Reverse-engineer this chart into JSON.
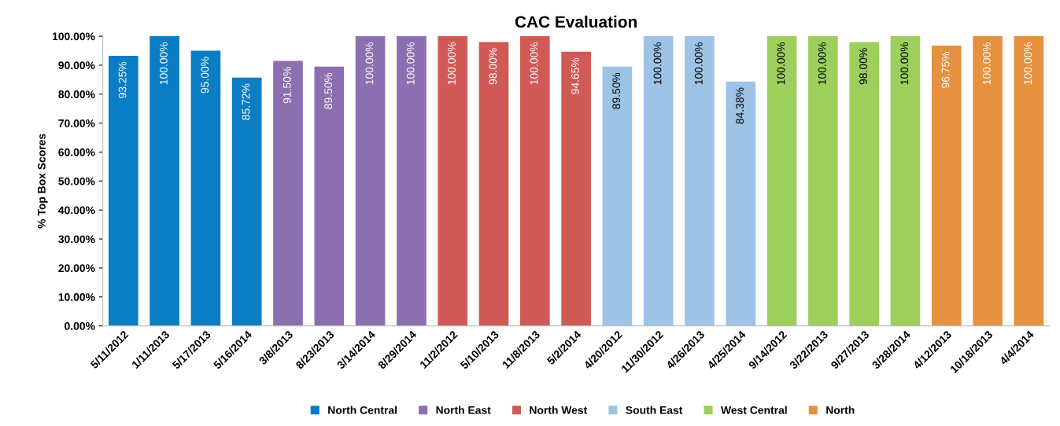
{
  "chart_data": {
    "type": "bar",
    "title": "CAC Evaluation",
    "ylabel": "% Top Box Scores",
    "categories": [
      "5/11/2012",
      "1/11/2013",
      "5/17/2013",
      "5/16/2014",
      "3/8/2013",
      "8/23/2013",
      "3/14/2014",
      "8/29/2014",
      "11/2/2012",
      "5/10/2013",
      "11/8/2013",
      "5/2/2014",
      "4/20/2012",
      "11/30/2012",
      "4/26/2013",
      "4/25/2014",
      "9/14/2012",
      "3/22/2013",
      "9/27/2013",
      "3/28/2014",
      "4/12/2013",
      "10/18/2013",
      "4/4/2014"
    ],
    "series": [
      {
        "name": "North Central",
        "color": "#0a7dc4",
        "values": [
          93.25,
          100,
          95,
          85.72,
          null,
          null,
          null,
          null,
          null,
          null,
          null,
          null,
          null,
          null,
          null,
          null,
          null,
          null,
          null,
          null,
          null,
          null,
          null
        ],
        "value_labels": [
          "93.25%",
          "100.00%",
          "95.00%",
          "85.72%",
          null,
          null,
          null,
          null,
          null,
          null,
          null,
          null,
          null,
          null,
          null,
          null,
          null,
          null,
          null,
          null,
          null,
          null,
          null
        ]
      },
      {
        "name": "North East",
        "color": "#8c6fb0",
        "values": [
          null,
          null,
          null,
          null,
          91.5,
          89.5,
          100,
          100,
          null,
          null,
          null,
          null,
          null,
          null,
          null,
          null,
          null,
          null,
          null,
          null,
          null,
          null,
          null
        ],
        "value_labels": [
          null,
          null,
          null,
          null,
          "91.50%",
          "89.50%",
          "100.00%",
          "100.00%",
          null,
          null,
          null,
          null,
          null,
          null,
          null,
          null,
          null,
          null,
          null,
          null,
          null,
          null,
          null
        ]
      },
      {
        "name": "North West",
        "color": "#d05a55",
        "values": [
          null,
          null,
          null,
          null,
          null,
          null,
          null,
          null,
          100,
          98,
          100,
          94.65,
          null,
          null,
          null,
          null,
          null,
          null,
          null,
          null,
          null,
          null,
          null
        ],
        "value_labels": [
          null,
          null,
          null,
          null,
          null,
          null,
          null,
          null,
          "100.00%",
          "98.00%",
          "100.00%",
          "94.65%",
          null,
          null,
          null,
          null,
          null,
          null,
          null,
          null,
          null,
          null,
          null
        ]
      },
      {
        "name": "South East",
        "color": "#9dc3e6",
        "values": [
          null,
          null,
          null,
          null,
          null,
          null,
          null,
          null,
          null,
          null,
          null,
          null,
          89.5,
          100,
          100,
          84.38,
          null,
          null,
          null,
          null,
          null,
          null,
          null
        ],
        "value_labels": [
          null,
          null,
          null,
          null,
          null,
          null,
          null,
          null,
          null,
          null,
          null,
          null,
          "89.50%",
          "100.00%",
          "100.00%",
          "84.38%",
          null,
          null,
          null,
          null,
          null,
          null,
          null
        ]
      },
      {
        "name": "West Central",
        "color": "#9ccf5c",
        "values": [
          null,
          null,
          null,
          null,
          null,
          null,
          null,
          null,
          null,
          null,
          null,
          null,
          null,
          null,
          null,
          null,
          100,
          100,
          98,
          100,
          null,
          null,
          null
        ],
        "value_labels": [
          null,
          null,
          null,
          null,
          null,
          null,
          null,
          null,
          null,
          null,
          null,
          null,
          null,
          null,
          null,
          null,
          "100.00%",
          "100.00%",
          "98.00%",
          "100.00%",
          null,
          null,
          null
        ]
      },
      {
        "name": "North",
        "color": "#e6913f",
        "values": [
          null,
          null,
          null,
          null,
          null,
          null,
          null,
          null,
          null,
          null,
          null,
          null,
          null,
          null,
          null,
          null,
          null,
          null,
          null,
          null,
          96.75,
          100,
          100
        ],
        "value_labels": [
          null,
          null,
          null,
          null,
          null,
          null,
          null,
          null,
          null,
          null,
          null,
          null,
          null,
          null,
          null,
          null,
          null,
          null,
          null,
          null,
          "96.75%",
          "100.00%",
          "100.00%"
        ]
      }
    ],
    "ylim": [
      0,
      100
    ],
    "yticks": [
      {
        "value": 0,
        "label": "0.00%"
      },
      {
        "value": 10,
        "label": "10.00%"
      },
      {
        "value": 20,
        "label": "20.00%"
      },
      {
        "value": 30,
        "label": "30.00%"
      },
      {
        "value": 40,
        "label": "40.00%"
      },
      {
        "value": 50,
        "label": "50.00%"
      },
      {
        "value": 60,
        "label": "60.00%"
      },
      {
        "value": 70,
        "label": "70.00%"
      },
      {
        "value": 80,
        "label": "80.00%"
      },
      {
        "value": 90,
        "label": "90.00%"
      },
      {
        "value": 100,
        "label": "100.00%"
      }
    ],
    "grid": false,
    "legend": "bottom"
  }
}
